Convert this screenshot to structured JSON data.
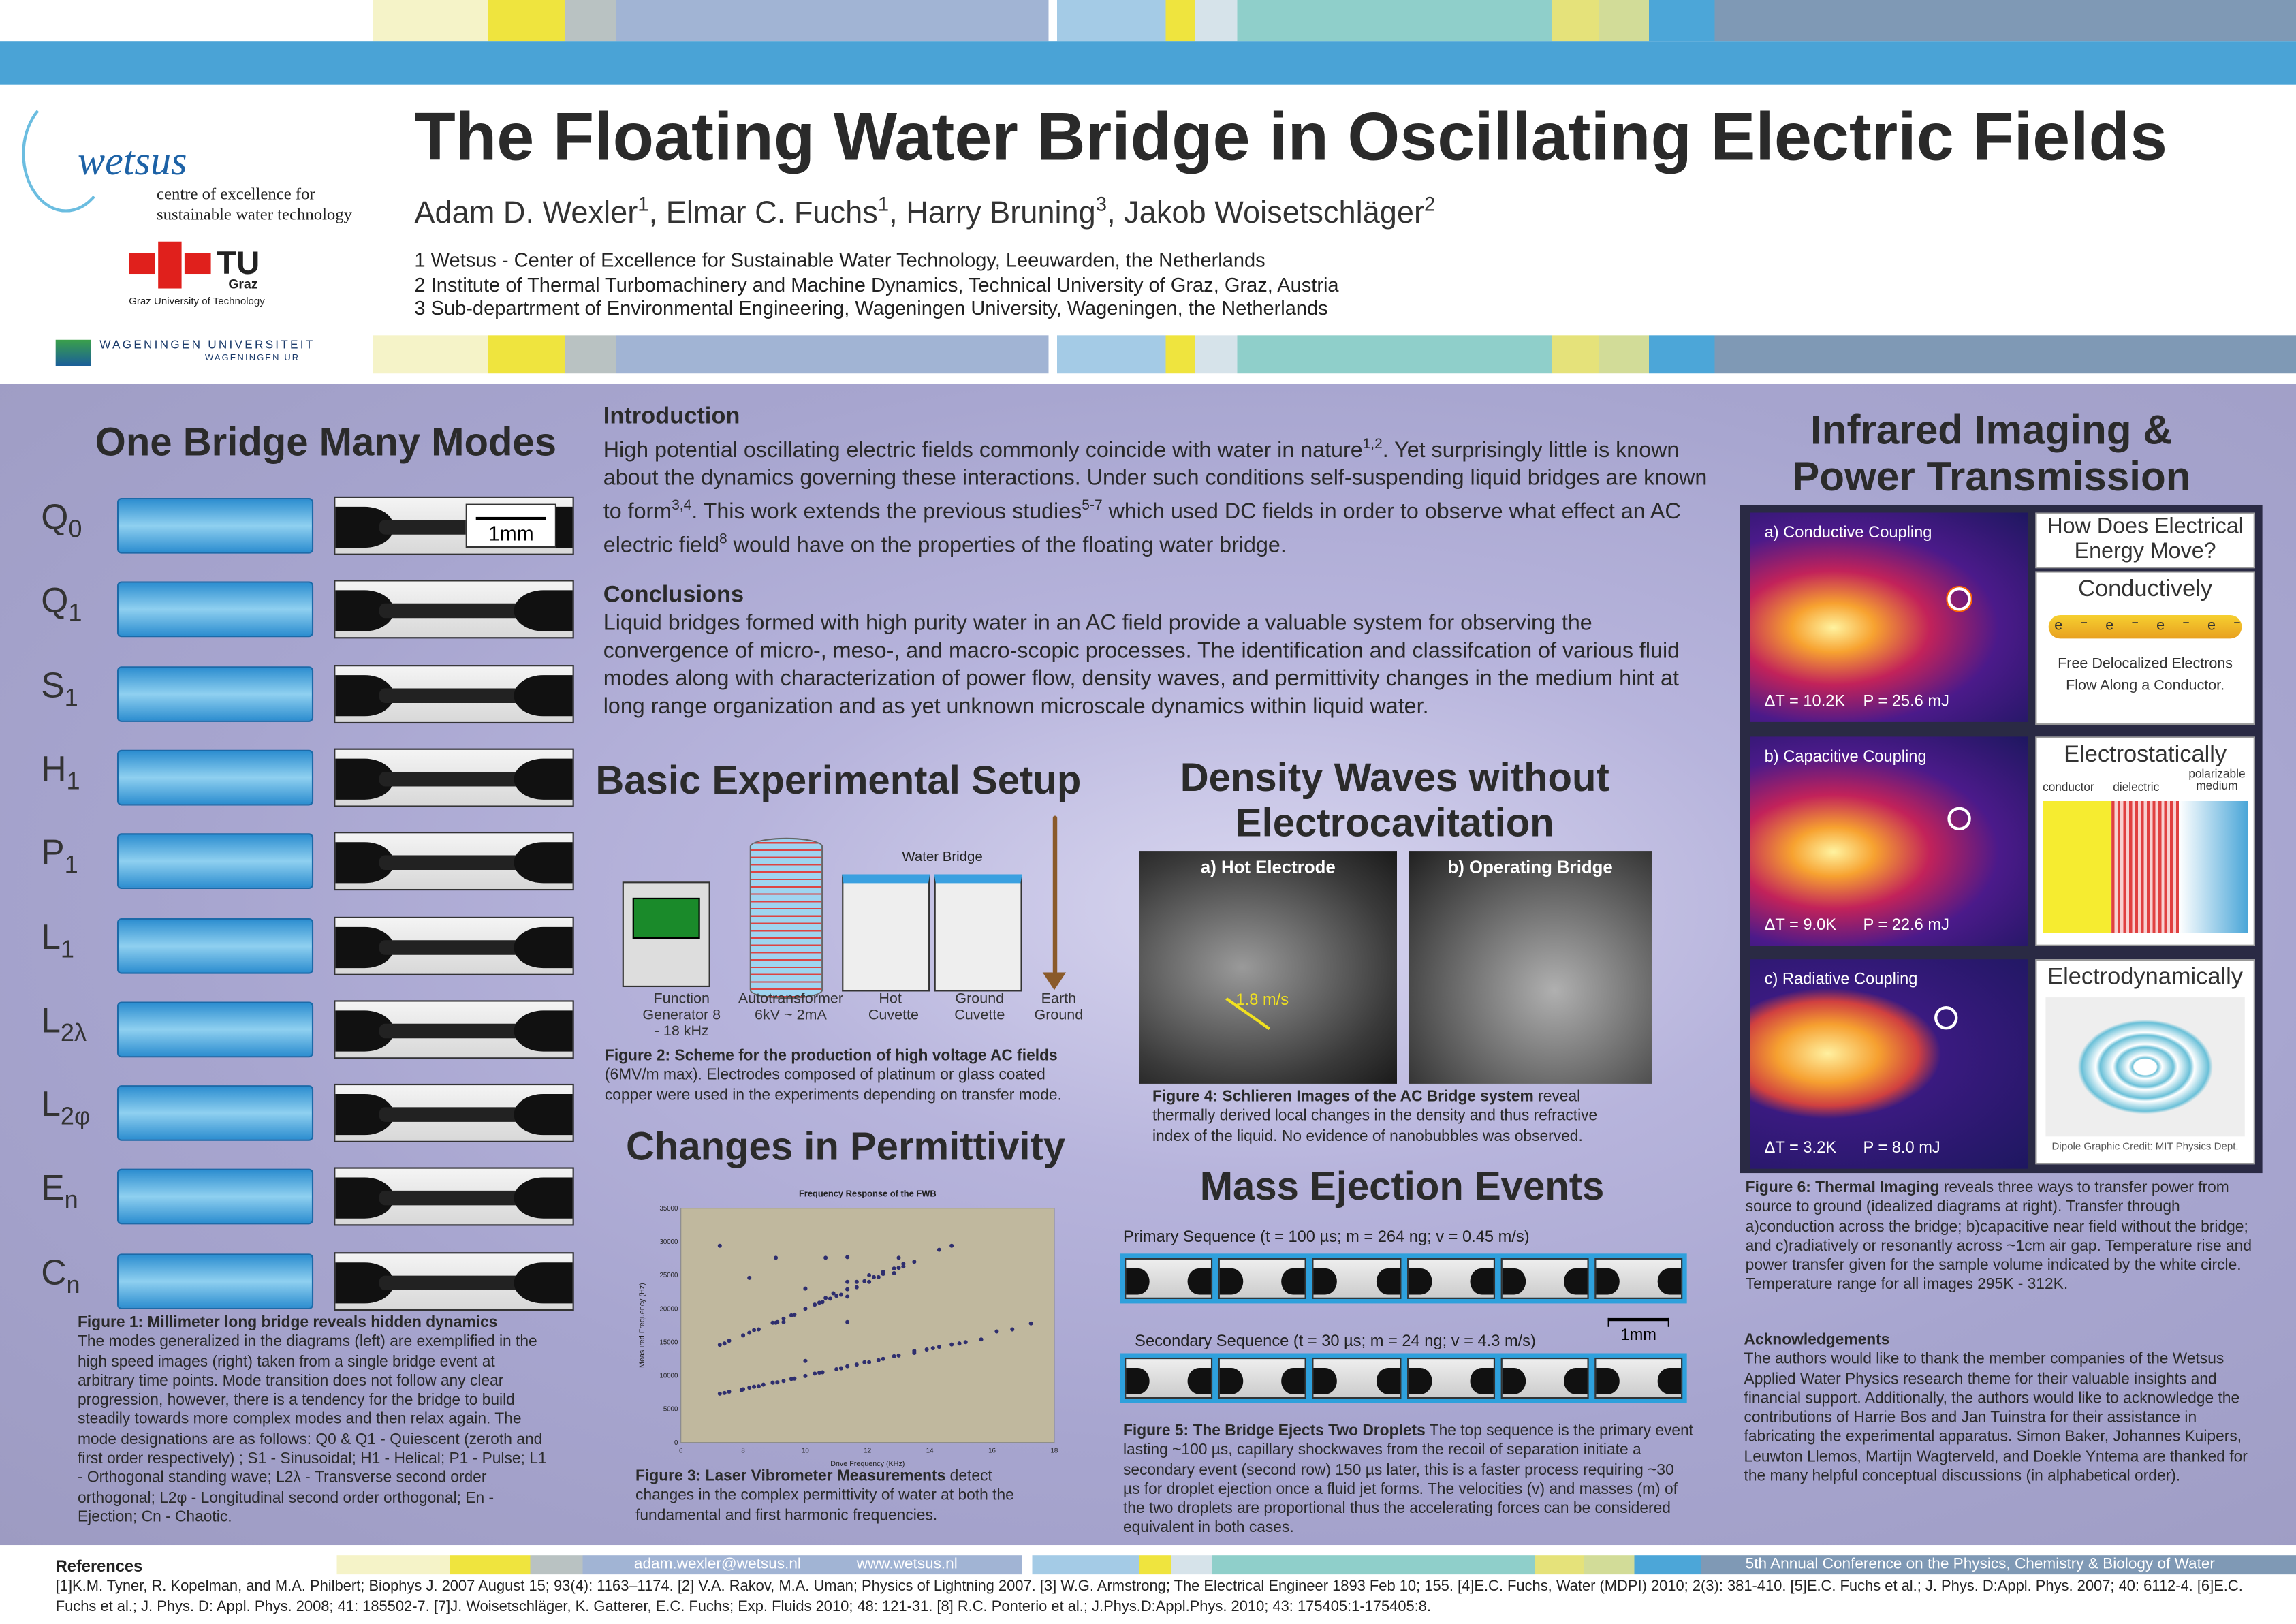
{
  "title": "The Floating Water Bridge in Oscillating Electric Fields",
  "authors": [
    {
      "name": "Adam D. Wexler",
      "sup": "1"
    },
    {
      "name": "Elmar C. Fuchs",
      "sup": "1"
    },
    {
      "name": "Harry Bruning",
      "sup": "3"
    },
    {
      "name": "Jakob Woisetschläger",
      "sup": "2"
    }
  ],
  "affiliations": [
    "1 Wetsus - Center of Excellence for Sustainable Water Technology, Leeuwarden, the Netherlands",
    "2 Institute of Thermal Turbomachinery and Machine Dynamics, Technical University of Graz, Graz, Austria",
    "3 Sub-departrment of Environmental Engineering, Wageningen University, Wageningen, the Netherlands"
  ],
  "logos": {
    "wetsus": "wetsus",
    "wetsus_tag1": "centre of excellence for",
    "wetsus_tag2": "sustainable water technology",
    "tugraz": "TU",
    "tugraz2": "Graz",
    "tugraz_sub": "Graz University of Technology",
    "wur1": "WAGENINGEN UNIVERSITEIT",
    "wur2": "WAGENINGEN UR"
  },
  "modes": {
    "title": "One Bridge Many Modes",
    "scale": "1mm",
    "items": [
      {
        "b": "Q",
        "s": "0"
      },
      {
        "b": "Q",
        "s": "1"
      },
      {
        "b": "S",
        "s": "1"
      },
      {
        "b": "H",
        "s": "1"
      },
      {
        "b": "P",
        "s": "1"
      },
      {
        "b": "L",
        "s": "1"
      },
      {
        "b": "L",
        "s": "2λ"
      },
      {
        "b": "L",
        "s": "2φ"
      },
      {
        "b": "E",
        "s": "n"
      },
      {
        "b": "C",
        "s": "n"
      }
    ],
    "caption_title": "Figure 1:  Millimeter long bridge reveals hidden dynamics",
    "caption": "The modes generalized in the diagrams (left) are exemplified in the high speed images (right) taken from a single bridge event at arbitrary time points.  Mode transition does not follow any clear progression, however, there is a tendency for the bridge to build steadily towards more complex modes and then relax again.  The mode designations are as follows: Q0 & Q1 - Quiescent (zeroth and first order respectively) ; S1 - Sinusoidal; H1 - Helical; P1 - Pulse; L1 - Orthogonal standing wave; L2λ - Transverse second order orthogonal; L2φ - Longitudinal second order orthogonal; En - Ejection; Cn - Chaotic."
  },
  "intro": {
    "heading": "Introduction",
    "p1": "High potential oscillating electric fields commonly coincide with water in nature",
    "s1": "1,2",
    "p2": ".  Yet surprisingly little is known about the dynamics governing these interactions.  Under such conditions self-suspending liquid bridges are known to form",
    "s2": "3,4",
    "p3": ".  This work extends the previous studies",
    "s3": "5-7",
    "p4": " which used DC fields in order to observe what effect an AC electric field",
    "s4": "8",
    "p5": " would have on the  properties of the floating water bridge."
  },
  "conclusions": {
    "heading": "Conclusions",
    "text": "Liquid bridges formed with high purity water in an AC field provide a valuable system for observing the convergence of micro-, meso-, and macro-scopic processes.  The identification and classifcation of various fluid modes along with characterization of power flow, density waves, and permittivity changes in the medium hint at long range organization and as yet unknown microscale dynamics within liquid water."
  },
  "setup": {
    "title": "Basic Experimental Setup",
    "water_bridge": "Water Bridge",
    "labels": [
      "Function Generator 8 - 18 kHz",
      "Autotransformer 6kV ~ 2mA",
      "Hot Cuvette",
      "Ground Cuvette",
      "Earth Ground"
    ],
    "caption_title": "Figure 2: Scheme for the production of high voltage AC fields",
    "caption": " (6MV/m max). Electrodes composed of platinum or glass coated copper were used in the experiments depending on transfer mode."
  },
  "permittivity": {
    "title": "Changes in Permittivity",
    "caption_title": "Figure 3: Laser Vibrometer Measurements",
    "caption": " detect changes in the complex permittivity of water at both the fundamental and first harmonic frequencies."
  },
  "chart_data": {
    "type": "scatter",
    "title": "Frequency Response of the FWB",
    "xlabel": "Drive Frequency (KHz)",
    "ylabel": "Measured Frequency (Hz)",
    "xlim": [
      6,
      18
    ],
    "ylim": [
      0,
      35000
    ],
    "xticks": [
      6,
      8,
      10,
      12,
      14,
      16,
      18
    ],
    "yticks": [
      0,
      5000,
      10000,
      15000,
      20000,
      25000,
      30000,
      35000
    ],
    "grid": false,
    "background": "#c0b89e",
    "marker_color": "#2e2e6e",
    "points": [
      [
        7.25,
        7300
      ],
      [
        7.4,
        7400
      ],
      [
        7.55,
        7600
      ],
      [
        7.95,
        7850
      ],
      [
        8,
        7950
      ],
      [
        8.2,
        8200
      ],
      [
        8.35,
        8350
      ],
      [
        8.5,
        8400
      ],
      [
        8.65,
        8650
      ],
      [
        8.95,
        8950
      ],
      [
        9.1,
        9000
      ],
      [
        9.3,
        9200
      ],
      [
        9.55,
        9500
      ],
      [
        9.65,
        9550
      ],
      [
        10,
        9950
      ],
      [
        10,
        12200
      ],
      [
        10.3,
        10300
      ],
      [
        10.45,
        10450
      ],
      [
        10.55,
        10500
      ],
      [
        11,
        10950
      ],
      [
        11.15,
        11100
      ],
      [
        11.35,
        11400
      ],
      [
        11.65,
        11650
      ],
      [
        11.9,
        12000
      ],
      [
        12.05,
        12000
      ],
      [
        12.35,
        12300
      ],
      [
        12.5,
        12500
      ],
      [
        12.85,
        12900
      ],
      [
        13,
        13000
      ],
      [
        13.5,
        13400
      ],
      [
        13.5,
        13700
      ],
      [
        13.9,
        13900
      ],
      [
        14.1,
        14100
      ],
      [
        14.3,
        14300
      ],
      [
        14.7,
        14650
      ],
      [
        14.95,
        14800
      ],
      [
        15.15,
        15000
      ],
      [
        15.65,
        15400
      ],
      [
        16.15,
        16600
      ],
      [
        16.65,
        16900
      ],
      [
        17.25,
        17800
      ],
      [
        7.25,
        14600
      ],
      [
        7.4,
        14800
      ],
      [
        7.55,
        15200
      ],
      [
        8,
        16000
      ],
      [
        8.2,
        16400
      ],
      [
        8.35,
        16800
      ],
      [
        8.5,
        16900
      ],
      [
        8.95,
        17900
      ],
      [
        9.05,
        17900
      ],
      [
        9.1,
        18000
      ],
      [
        9.3,
        18000
      ],
      [
        9.3,
        18500
      ],
      [
        9.55,
        19000
      ],
      [
        9.65,
        19100
      ],
      [
        10,
        20000
      ],
      [
        10,
        23000
      ],
      [
        10.3,
        20600
      ],
      [
        10.45,
        20900
      ],
      [
        10.55,
        21000
      ],
      [
        10.65,
        21600
      ],
      [
        10.8,
        21500
      ],
      [
        10.9,
        22300
      ],
      [
        11,
        21900
      ],
      [
        11.15,
        22100
      ],
      [
        11.35,
        21800
      ],
      [
        11.35,
        22900
      ],
      [
        11.35,
        24000
      ],
      [
        11.35,
        18000
      ],
      [
        11.65,
        23200
      ],
      [
        11.65,
        24000
      ],
      [
        11.9,
        24100
      ],
      [
        12.05,
        24000
      ],
      [
        12.05,
        25000
      ],
      [
        12.2,
        24700
      ],
      [
        12.35,
        24700
      ],
      [
        12.5,
        25200
      ],
      [
        12.5,
        25500
      ],
      [
        12.85,
        25300
      ],
      [
        12.85,
        26000
      ],
      [
        13,
        26100
      ],
      [
        13.15,
        26300
      ],
      [
        13.15,
        26700
      ],
      [
        13.5,
        27000
      ],
      [
        14.3,
        28800
      ],
      [
        14.7,
        29400
      ],
      [
        7.25,
        29400
      ],
      [
        8.2,
        24600
      ],
      [
        9.05,
        27600
      ],
      [
        10.65,
        27600
      ],
      [
        11.35,
        27700
      ],
      [
        13,
        27600
      ]
    ]
  },
  "density": {
    "title": "Density Waves without Electrocavitation",
    "a": "a) Hot Electrode",
    "b": "b) Operating Bridge",
    "speed": "1.8 m/s",
    "caption_title": "Figure 4: Schlieren Images of the AC Bridge system",
    "caption": " reveal thermally derived local changes in the density and thus refractive index of the liquid.  No evidence of nanobubbles was observed."
  },
  "ejection": {
    "title": "Mass Ejection Events",
    "primary": "Primary Sequence  (t = 100 µs; m = 264 ng; v = 0.45 m/s)",
    "secondary": "Secondary Sequence (t = 30 µs; m = 24 ng; v = 4.3 m/s)",
    "scale": "1mm",
    "caption_title": "Figure 5: The Bridge Ejects Two Droplets",
    "caption": "  The top sequence is the primary event lasting ~100 µs, capillary shockwaves from the recoil of separation initiate a secondary event (second row) 150 µs later, this is a faster process requiring ~30 µs for droplet ejection once a fluid jet forms.  The velocities (v) and masses (m) of the two droplets are proportional thus the accelerating forces can be considered equivalent in both cases."
  },
  "infrared": {
    "title": "Infrared Imaging & Power Transmission",
    "panels": [
      {
        "label": "a) Conductive Coupling",
        "dt": "ΔT = 10.2K    P = 25.6 mJ"
      },
      {
        "label": "b) Capacitive Coupling",
        "dt": "ΔT = 9.0K      P = 22.6 mJ"
      },
      {
        "label": "c) Radiative Coupling",
        "dt": "ΔT = 3.2K      P = 8.0 mJ"
      }
    ],
    "question": "How Does Electrical Energy Move?",
    "conductively": "Conductively",
    "electron": "e⁻",
    "free": "Free Delocalized Electrons Flow Along a Conductor.",
    "electrostatically": "Electrostatically",
    "conductor": "conductor",
    "dielectric": "dielectric",
    "medium": "polarizable medium",
    "electrodynamically": "Electrodynamically",
    "credit": "Dipole Graphic Credit: MIT Physics Dept.",
    "caption_title": "Figure 6: Thermal Imaging",
    "caption": " reveals three ways to transfer power from source to ground (idealized diagrams at right).  Transfer through a)conduction across the bridge; b)capacitive near field without the bridge; and c)radiatively or resonantly across ~1cm air gap.  Temperature rise and power transfer given for the sample volume indicated by the white circle. Temperature range for all images 295K - 312K."
  },
  "ack": {
    "heading": "Acknowledgements",
    "text": "The authors would like to thank the member companies of the Wetsus Applied Water Physics research theme for their valuable insights and financial support.  Additionally, the authors would like to acknowledge the contributions of Harrie Bos and Jan Tuinstra for their assistance in fabricating the experimental apparatus.  Simon Baker, Johannes Kuipers, Leuwton Llemos, Martijn Wagterveld, and Doekle Yntema are thanked for the many helpful conceptual discussions (in alphabetical order)."
  },
  "footer": {
    "email": "adam.wexler@wetsus.nl",
    "web": "www.wetsus.nl",
    "conference": "5th Annual Conference on the Physics, Chemistry & Biology of Water",
    "refs_heading": "References",
    "refs": "[1]K.M. Tyner, R. Kopelman, and M.A. Philbert; Biophys J. 2007 August 15; 93(4): 1163–1174. [2] V.A. Rakov, M.A. Uman; Physics of Lightning 2007. [3] W.G. Armstrong; The Electrical Engineer 1893 Feb 10; 155. [4]E.C. Fuchs, Water (MDPI) 2010; 2(3): 381-410. [5]E.C. Fuchs et al.; J. Phys. D:Appl. Phys. 2007; 40: 6112-4. [6]E.C. Fuchs et al.; J. Phys. D: Appl. Phys. 2008; 41: 185502-7. [7]J. Woisetschläger, K. Gatterer, E.C. Fuchs; Exp. Fluids 2010; 48: 121-31. [8] R.C. Ponterio et al.; J.Phys.D:Appl.Phys. 2010; 43: 175405:1-175405:8."
  }
}
